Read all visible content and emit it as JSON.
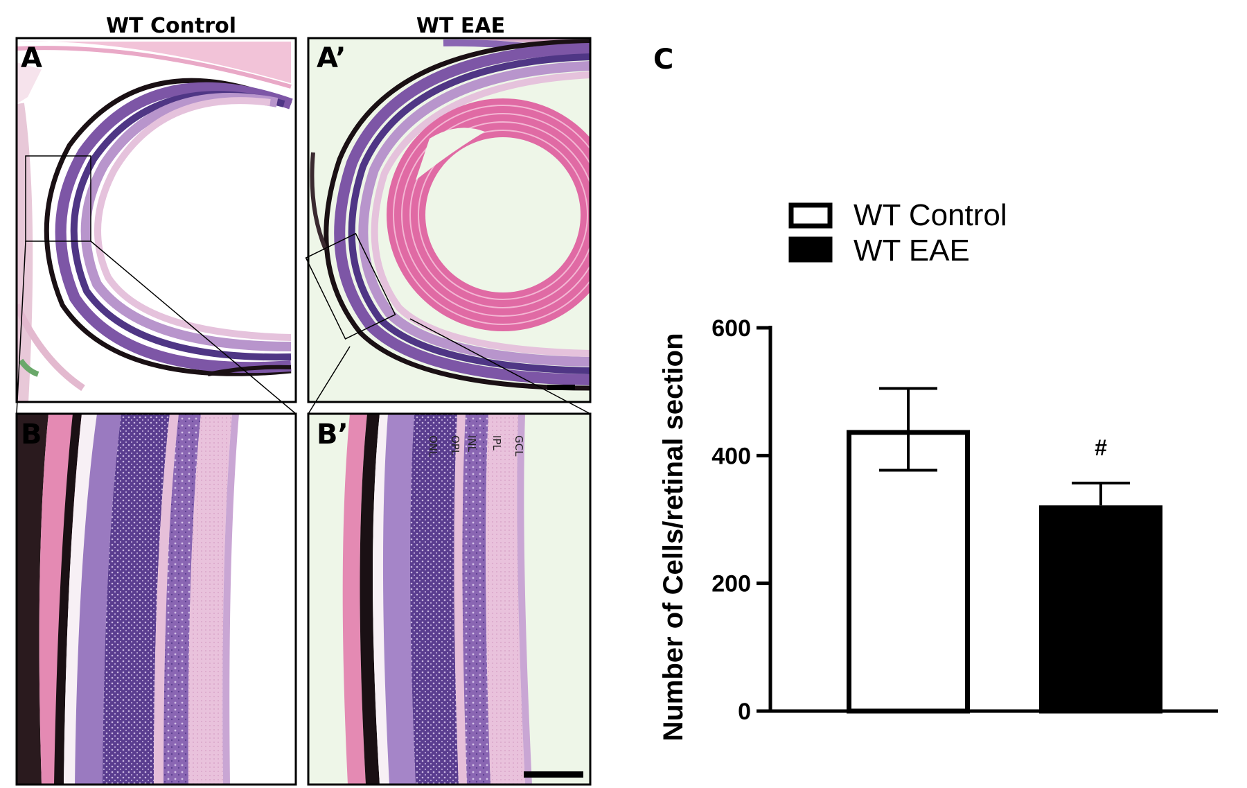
{
  "figure": {
    "column_titles": [
      "WT Control",
      "WT EAE"
    ],
    "panel_labels": {
      "a": "A",
      "a_prime": "A’",
      "b": "B",
      "b_prime": "B’",
      "c": "C"
    },
    "retina_layer_labels": [
      "ONL",
      "OPL",
      "INL",
      "IPL",
      "GCL"
    ],
    "colors": {
      "tissue_pink": "#e7a6c4",
      "tissue_purple": "#7d56a6",
      "tissue_dark_purple": "#4f3685",
      "pigment": "#1a1014",
      "background_control": "#ffffff",
      "background_eae": "#eef6e8",
      "lens_pink": "#e06aa4"
    }
  },
  "chart_data": {
    "type": "bar",
    "categories": [
      "WT Control",
      "WT EAE"
    ],
    "values": [
      440,
      322
    ],
    "error_upper": [
      505,
      357
    ],
    "error_lower": [
      377,
      322
    ],
    "bar_fill": [
      "#ffffff",
      "#000000"
    ],
    "ylabel": "Number of Cells/retinal section",
    "ylim": [
      0,
      600
    ],
    "yticks": [
      0,
      200,
      400,
      600
    ],
    "legend": [
      "WT Control",
      "WT EAE"
    ],
    "legend_position": "top",
    "annotations": [
      {
        "category": "WT EAE",
        "text": "#"
      }
    ]
  }
}
